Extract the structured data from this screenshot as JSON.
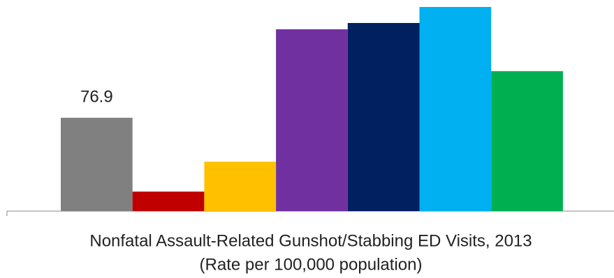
{
  "chart_data": {
    "type": "bar",
    "title": "Nonfatal Assault-Related Gunshot/Stabbing ED Visits, 2013",
    "subtitle": "(Rate per 100,000 population)",
    "categories": [
      null,
      null,
      null,
      null,
      null,
      null,
      null
    ],
    "values": [
      76.9,
      16.1,
      40.7,
      149.8,
      155.0,
      168.2,
      115.3
    ],
    "value_labels": [
      "76.9",
      null,
      null,
      null,
      null,
      null,
      null
    ],
    "colors": [
      "#808080",
      "#c00000",
      "#ffc000",
      "#7030a0",
      "#002060",
      "#00b0f0",
      "#00b050"
    ]
  }
}
